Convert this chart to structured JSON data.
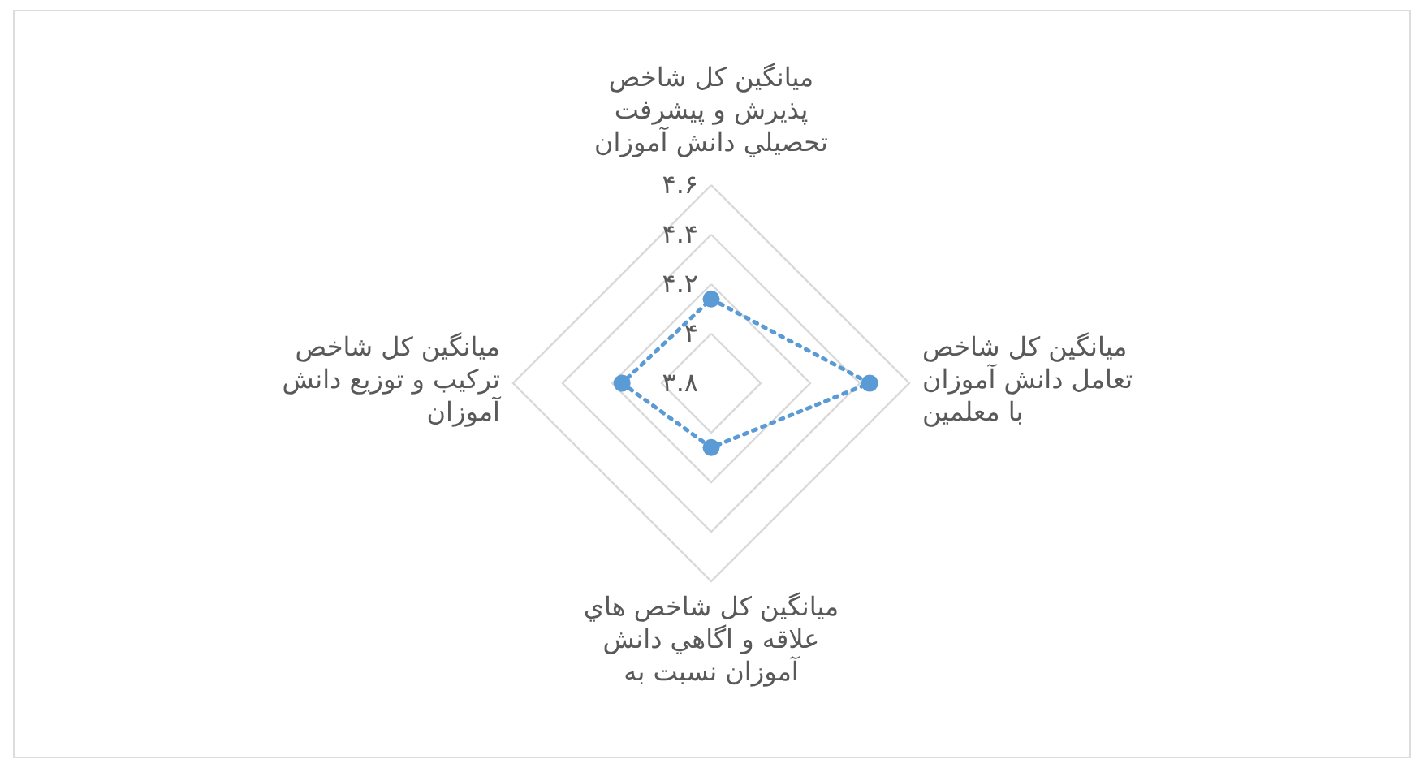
{
  "chart_data": {
    "type": "radar",
    "categories": [
      "میانگین کل شاخص پذیرش و پیشرفت تحصيلي دانش آموزان",
      "میانگین کل شاخص تعامل دانش آموزان با معلمین",
      "میانگین کل شاخص هاي علاقه و اگاهي دانش آموزان نسبت به",
      "میانگین کل شاخص ترکیب و توزیع دانش آموزان"
    ],
    "series": [
      {
        "color": "#5b9bd5",
        "values": [
          4.14,
          4.44,
          4.06,
          4.16
        ]
      }
    ],
    "ylim": [
      3.8,
      4.6
    ],
    "yticks": [
      {
        "value": 3.8,
        "label": "۳.۸"
      },
      {
        "value": 4,
        "label": "۴"
      },
      {
        "value": 4.2,
        "label": "۴.۲"
      },
      {
        "value": 4.4,
        "label": "۴.۴"
      },
      {
        "value": 4.6,
        "label": "۴.۶"
      }
    ],
    "grid": true,
    "marker": "circle",
    "line_style": "dotted"
  }
}
